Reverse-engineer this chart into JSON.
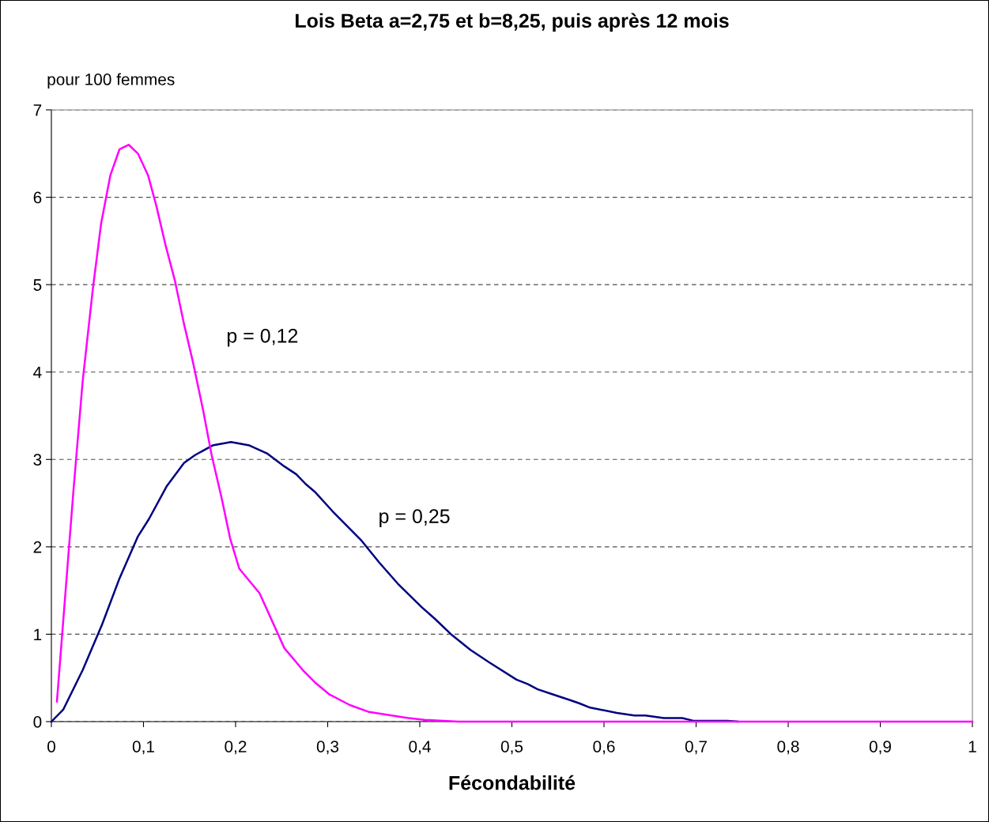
{
  "chart_data": {
    "type": "line",
    "title": "Lois Beta a=2,75 et b=8,25, puis après 12 mois",
    "xlabel": "Fécondabilité",
    "ylabel": "pour 100 femmes",
    "series": [
      {
        "color": "#ff00ff",
        "x": [
          0.006,
          0.024,
          0.034,
          0.045,
          0.054,
          0.064,
          0.074,
          0.084,
          0.094,
          0.105,
          0.114,
          0.124,
          0.134,
          0.144,
          0.154,
          0.165,
          0.174,
          0.185,
          0.194,
          0.204,
          0.226,
          0.253,
          0.273,
          0.286,
          0.302,
          0.324,
          0.345,
          0.388,
          0.405,
          0.442,
          0.5,
          0.6,
          0.7,
          0.8,
          0.9,
          1.0
        ],
        "values": [
          0.23,
          2.65,
          3.9,
          4.95,
          5.7,
          6.25,
          6.55,
          6.6,
          6.5,
          6.25,
          5.9,
          5.45,
          5.05,
          4.55,
          4.1,
          3.55,
          3.05,
          2.55,
          2.1,
          1.75,
          1.47,
          0.84,
          0.59,
          0.45,
          0.31,
          0.19,
          0.11,
          0.04,
          0.02,
          0,
          0,
          0,
          0,
          0,
          0,
          0
        ]
      },
      {
        "color": "#000080",
        "x": [
          0.0,
          0.013,
          0.034,
          0.055,
          0.074,
          0.094,
          0.106,
          0.125,
          0.144,
          0.156,
          0.175,
          0.195,
          0.215,
          0.234,
          0.253,
          0.266,
          0.276,
          0.286,
          0.305,
          0.336,
          0.356,
          0.376,
          0.402,
          0.416,
          0.435,
          0.455,
          0.475,
          0.505,
          0.517,
          0.528,
          0.545,
          0.565,
          0.573,
          0.585,
          0.614,
          0.633,
          0.645,
          0.665,
          0.685,
          0.697,
          0.734,
          0.745
        ],
        "values": [
          0,
          0.14,
          0.59,
          1.11,
          1.64,
          2.12,
          2.32,
          2.69,
          2.96,
          3.05,
          3.16,
          3.2,
          3.16,
          3.07,
          2.92,
          2.83,
          2.72,
          2.63,
          2.41,
          2.08,
          1.82,
          1.58,
          1.31,
          1.18,
          0.99,
          0.82,
          0.68,
          0.48,
          0.43,
          0.37,
          0.31,
          0.24,
          0.21,
          0.16,
          0.1,
          0.07,
          0.07,
          0.04,
          0.04,
          0.01,
          0.01,
          0
        ]
      }
    ],
    "annotations": [
      "p = 0,12",
      "p = 0,25"
    ],
    "xlim": [
      0,
      1
    ],
    "ylim": [
      0,
      7
    ],
    "xticks": [
      0,
      {
        "value": 0.1,
        "label": "0,1"
      },
      {
        "value": 0.2,
        "label": "0,2"
      },
      {
        "value": 0.3,
        "label": "0,3"
      },
      {
        "value": 0.4,
        "label": "0,4"
      },
      {
        "value": 0.5,
        "label": "0,5"
      },
      {
        "value": 0.6,
        "label": "0,6"
      },
      {
        "value": 0.7,
        "label": "0,7"
      },
      {
        "value": 0.8,
        "label": "0,8"
      },
      {
        "value": 0.9,
        "label": "0,9"
      },
      1
    ],
    "yticks": [
      0,
      1,
      2,
      3,
      4,
      5,
      6,
      7
    ],
    "grid": "y",
    "legend": false,
    "marker": "none",
    "line_style": "solid"
  }
}
